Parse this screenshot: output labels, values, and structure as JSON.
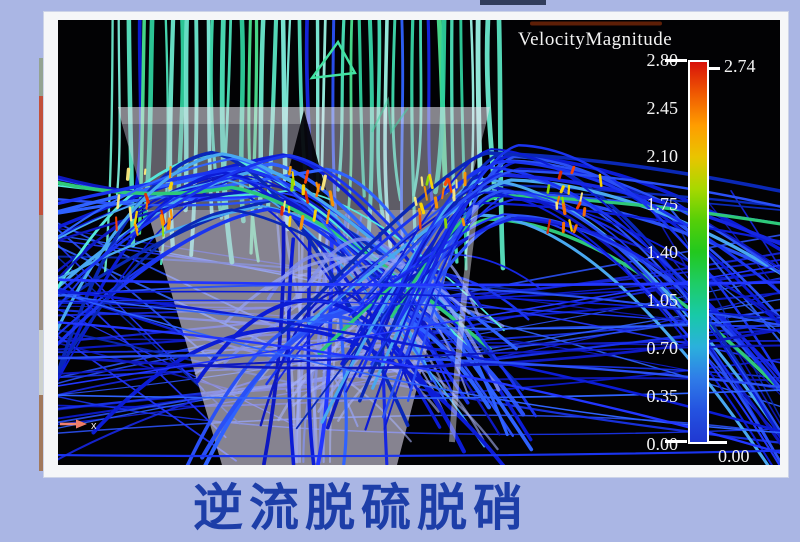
{
  "page": {
    "background": "#aab6e4",
    "caption": "逆流脱硫脱硝",
    "caption_color": "#1d3ea8"
  },
  "viz": {
    "legend": {
      "title": "VelocityMagnitude",
      "tick_labels": [
        "2.80",
        "2.45",
        "2.10",
        "1.75",
        "1.40",
        "1.05",
        "0.70",
        "0.35",
        "0.00"
      ],
      "range_max_label": "2.74",
      "range_min_label": "0.00",
      "bar_gradient": [
        "#d8120a",
        "#ef5902",
        "#ff9d00",
        "#e9c400",
        "#a8d800",
        "#55cf08",
        "#22c81e",
        "#1ecc66",
        "#18c9a8",
        "#2bb0dc",
        "#2f7ce8",
        "#2452e0",
        "#2038d2"
      ]
    },
    "axis_marker": {
      "label": "x",
      "arrow_color": "#ef7d68"
    },
    "palettes": {
      "teal": [
        "#2ecf9c",
        "#40dbae",
        "#58e3c0",
        "#7deedb",
        "#9bf2e4",
        "#36d4a6",
        "#4be0b8",
        "#6ae8cc",
        "#49e08e"
      ],
      "blue": [
        "#0c1cd6",
        "#1a34f0",
        "#2a50f6",
        "#0a28b6",
        "#2f62ff",
        "#1626e2",
        "#0e18c0",
        "#2236ff"
      ],
      "light": [
        "rgba(150,162,244,0.75)",
        "rgba(170,180,250,0.6)",
        "rgba(132,146,238,0.8)"
      ],
      "cyan": [
        "#3ac8ea",
        "#55e8dc",
        "#49a8f0",
        "#2ec87a"
      ],
      "hot": [
        "#ffd800",
        "#ff9500",
        "#ff4500",
        "#e62c00",
        "#90e000",
        "#ffec80",
        "#ff7300"
      ]
    }
  }
}
